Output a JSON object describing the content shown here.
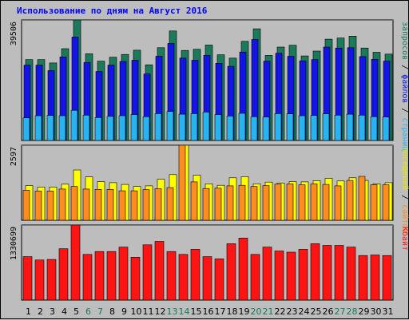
{
  "title": "Использование по дням на Август 2016",
  "colors": {
    "background": "#bdbdbd",
    "panel": "#bdbdbd",
    "grid": "#777777",
    "title": "#0000ff",
    "hits_top": "#1a7a5a",
    "files": "#1414e6",
    "pages": "#28b4f0",
    "visits": "#ffff00",
    "sites": "#ff8c1e",
    "kbytes": "#ff1414",
    "weekday_label": "#000000",
    "weekend_label": "#137a5a"
  },
  "chart_data": [
    {
      "type": "bar",
      "title": "Использование по дням на Август 2016",
      "categories": [
        "1",
        "2",
        "3",
        "4",
        "5",
        "6",
        "7",
        "8",
        "9",
        "10",
        "11",
        "12",
        "13",
        "14",
        "15",
        "16",
        "17",
        "18",
        "19",
        "20",
        "21",
        "22",
        "23",
        "24",
        "25",
        "26",
        "27",
        "28",
        "29",
        "30",
        "31"
      ],
      "weekend_days": [
        "6",
        "7",
        "13",
        "14",
        "20",
        "21",
        "27",
        "28"
      ],
      "ymax_label": "39506",
      "ylim": [
        0,
        39506
      ],
      "side_label_parts": [
        {
          "text": "запросов",
          "color": "#1a7a5a"
        },
        {
          "text": " / ",
          "color": "#000000"
        },
        {
          "text": "файлов",
          "color": "#1414e6"
        },
        {
          "text": " / ",
          "color": "#000000"
        },
        {
          "text": "страниц",
          "color": "#28b4f0"
        }
      ],
      "series": [
        {
          "name": "запросов",
          "color": "#1a7a5a",
          "values": [
            26500,
            26500,
            25400,
            30100,
            39506,
            28400,
            26000,
            27300,
            28200,
            29600,
            24800,
            30400,
            35900,
            29500,
            29900,
            31300,
            28100,
            27000,
            32500,
            36600,
            27900,
            30600,
            31200,
            27700,
            29300,
            33200,
            33600,
            34200,
            30300,
            28900,
            28300
          ]
        },
        {
          "name": "файлов",
          "color": "#1414e6",
          "values": [
            24700,
            24700,
            22900,
            27400,
            33900,
            25600,
            22600,
            24700,
            25900,
            26300,
            21800,
            27600,
            31800,
            27000,
            26300,
            27900,
            25300,
            24300,
            29000,
            33100,
            26000,
            28600,
            27600,
            26100,
            26500,
            30600,
            30300,
            30400,
            27500,
            26600,
            26000
          ]
        },
        {
          "name": "страниц",
          "color": "#28b4f0",
          "values": [
            7400,
            8100,
            8200,
            8100,
            9900,
            8300,
            7500,
            7900,
            8100,
            8500,
            7800,
            8800,
            9500,
            8600,
            8800,
            9300,
            8500,
            8000,
            8900,
            7800,
            7700,
            8800,
            8700,
            8100,
            8200,
            8700,
            8300,
            8600,
            8300,
            7800,
            7700
          ]
        }
      ]
    },
    {
      "type": "bar",
      "categories": [
        "1",
        "2",
        "3",
        "4",
        "5",
        "6",
        "7",
        "8",
        "9",
        "10",
        "11",
        "12",
        "13",
        "14",
        "15",
        "16",
        "17",
        "18",
        "19",
        "20",
        "21",
        "22",
        "23",
        "24",
        "25",
        "26",
        "27",
        "28",
        "29",
        "30",
        "31"
      ],
      "ymax_label": "2597",
      "ylim": [
        0,
        2597
      ],
      "side_label_parts": [
        {
          "text": "посещений",
          "color": "#e6e600"
        },
        {
          "text": " / ",
          "color": "#000000"
        },
        {
          "text": "сайтов",
          "color": "#ff8c1e"
        }
      ],
      "series": [
        {
          "name": "посещений",
          "color": "#ffff00",
          "values": [
            1200,
            1150,
            1150,
            1250,
            1740,
            1500,
            1340,
            1300,
            1240,
            1170,
            1190,
            1420,
            1580,
            2597,
            1560,
            1260,
            1210,
            1470,
            1510,
            1260,
            1320,
            1290,
            1340,
            1330,
            1370,
            1450,
            1360,
            1470,
            1380,
            1260,
            1300
          ]
        },
        {
          "name": "сайтов",
          "color": "#ff8c1e",
          "values": [
            1040,
            1010,
            1010,
            1080,
            1170,
            1080,
            1070,
            1070,
            1020,
            1020,
            1060,
            1090,
            1130,
            2597,
            1330,
            1100,
            1110,
            1190,
            1210,
            1170,
            1200,
            1250,
            1260,
            1230,
            1260,
            1240,
            1190,
            1380,
            1520,
            1230,
            1230
          ]
        }
      ]
    },
    {
      "type": "bar",
      "categories": [
        "1",
        "2",
        "3",
        "4",
        "5",
        "6",
        "7",
        "8",
        "9",
        "10",
        "11",
        "12",
        "13",
        "14",
        "15",
        "16",
        "17",
        "18",
        "19",
        "20",
        "21",
        "22",
        "23",
        "24",
        "25",
        "26",
        "27",
        "28",
        "29",
        "30",
        "31"
      ],
      "ymax_label": "1330699",
      "ylim": [
        0,
        1330699
      ],
      "side_label_parts": [
        {
          "text": "Кбайт",
          "color": "#ff1414"
        }
      ],
      "series": [
        {
          "name": "Кбайт",
          "color": "#ff1414",
          "values": [
            770000,
            710000,
            720000,
            910000,
            1330699,
            810000,
            860000,
            860000,
            940000,
            760000,
            980000,
            1040000,
            860000,
            810000,
            900000,
            770000,
            730000,
            1000000,
            1100000,
            810000,
            940000,
            870000,
            850000,
            900000,
            1000000,
            970000,
            970000,
            940000,
            790000,
            800000,
            790000
          ]
        }
      ]
    }
  ]
}
